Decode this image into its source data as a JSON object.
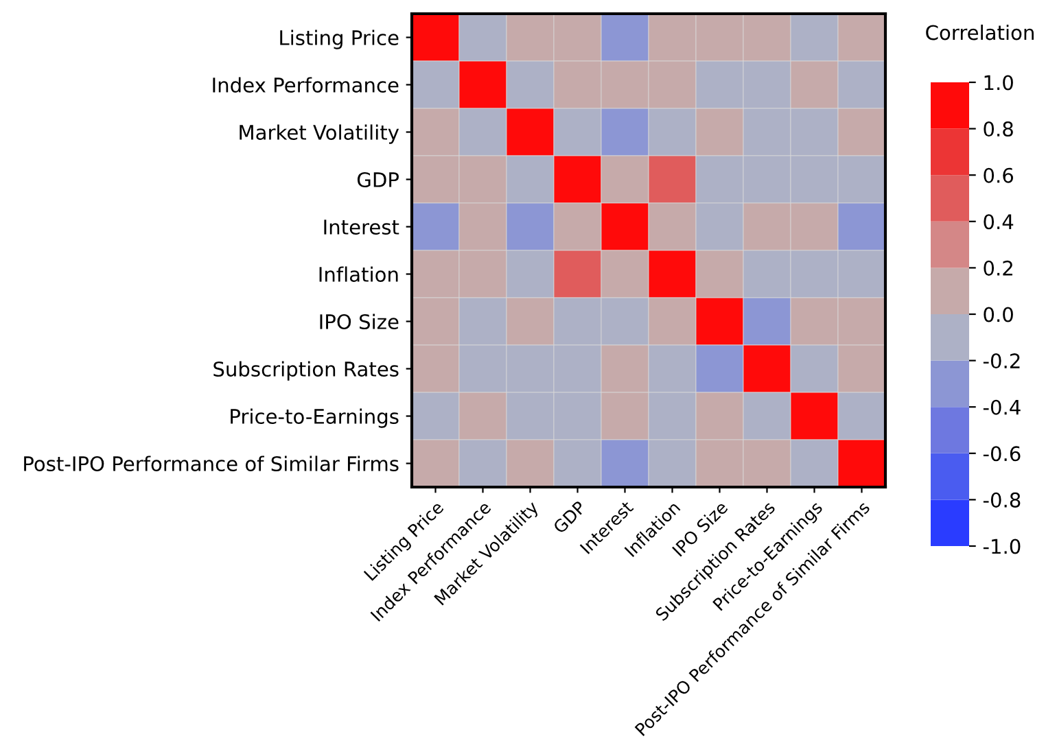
{
  "chart_data": {
    "type": "heatmap",
    "clabel": "Correlation",
    "categories": [
      "Listing Price",
      "Index Performance",
      "Market Volatility",
      "GDP",
      "Interest",
      "Inflation",
      "IPO Size",
      "Subscription Rates",
      "Price-to-Earnings",
      "Post-IPO Performance of Similar Firms"
    ],
    "y_categories": [
      "Listing Price",
      "Index Performance",
      "Market Volatility",
      "GDP",
      "Interest",
      "Inflation",
      "IPO Size",
      "Subscription Rates",
      "Price-to-Earnings",
      "Post-IPO Performance of Similar Firms"
    ],
    "cells": [
      [
        1.0,
        -0.1,
        0.1,
        0.1,
        -0.3,
        0.1,
        0.1,
        0.1,
        -0.1,
        0.1
      ],
      [
        -0.1,
        1.0,
        -0.1,
        0.1,
        0.1,
        0.1,
        -0.1,
        -0.1,
        0.1,
        -0.1
      ],
      [
        0.1,
        -0.1,
        1.0,
        -0.1,
        -0.3,
        -0.1,
        0.1,
        -0.1,
        -0.1,
        0.1
      ],
      [
        0.1,
        0.1,
        -0.1,
        1.0,
        0.1,
        0.5,
        -0.1,
        -0.1,
        -0.1,
        -0.1
      ],
      [
        -0.3,
        0.1,
        -0.3,
        0.1,
        1.0,
        0.1,
        -0.1,
        0.1,
        0.1,
        -0.3
      ],
      [
        0.1,
        0.1,
        -0.1,
        0.5,
        0.1,
        1.0,
        0.1,
        -0.1,
        -0.1,
        -0.1
      ],
      [
        0.1,
        -0.1,
        0.1,
        -0.1,
        -0.1,
        0.1,
        1.0,
        -0.3,
        0.1,
        0.1
      ],
      [
        0.1,
        -0.1,
        -0.1,
        -0.1,
        0.1,
        -0.1,
        -0.3,
        1.0,
        -0.1,
        0.1
      ],
      [
        -0.1,
        0.1,
        -0.1,
        -0.1,
        0.1,
        -0.1,
        0.1,
        -0.1,
        1.0,
        -0.1
      ],
      [
        0.1,
        -0.1,
        0.1,
        -0.1,
        -0.3,
        -0.1,
        0.1,
        0.1,
        -0.1,
        1.0
      ]
    ],
    "clim": [
      -1.0,
      1.0
    ],
    "cticks": [
      {
        "value": 1.0,
        "label": "1.0"
      },
      {
        "value": 0.8,
        "label": "0.8"
      },
      {
        "value": 0.6,
        "label": "0.6"
      },
      {
        "value": 0.4,
        "label": "0.4"
      },
      {
        "value": 0.2,
        "label": "0.2"
      },
      {
        "value": 0.0,
        "label": "0.0"
      },
      {
        "value": -0.2,
        "label": "-0.2"
      },
      {
        "value": -0.4,
        "label": "-0.4"
      },
      {
        "value": -0.6,
        "label": "-0.6"
      },
      {
        "value": -0.8,
        "label": "-0.8"
      },
      {
        "value": -1.0,
        "label": "-1.0"
      }
    ]
  }
}
